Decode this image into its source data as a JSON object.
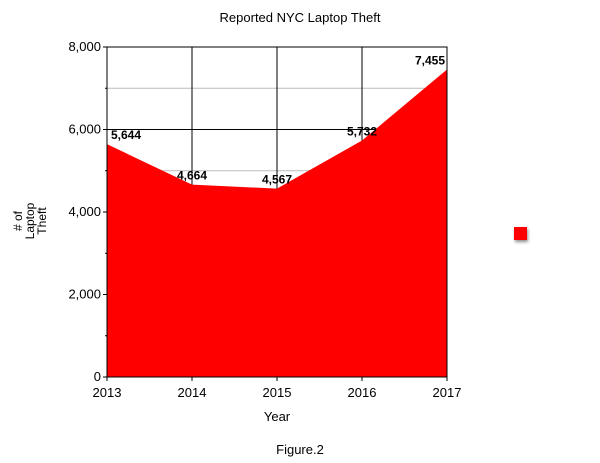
{
  "chart_data": {
    "type": "area",
    "title": "Reported NYC Laptop Theft",
    "xlabel": "Year",
    "ylabel": "# of Laptop Theft",
    "categories": [
      "2013",
      "2014",
      "2015",
      "2016",
      "2017"
    ],
    "series": [
      {
        "values": [
          5644,
          4664,
          4567,
          5732,
          7455
        ],
        "color": "#ff0000"
      }
    ],
    "value_labels": [
      "5,644",
      "4,664",
      "4,567",
      "5,732",
      "7,455"
    ],
    "ylim": [
      0,
      8000
    ],
    "yticks": [
      0,
      2000,
      4000,
      6000,
      8000
    ],
    "ytick_labels": [
      "0",
      "2,000",
      "4,000",
      "6,000",
      "8,000"
    ],
    "grid": true,
    "legend_position": "right"
  },
  "caption": "Figure.2"
}
